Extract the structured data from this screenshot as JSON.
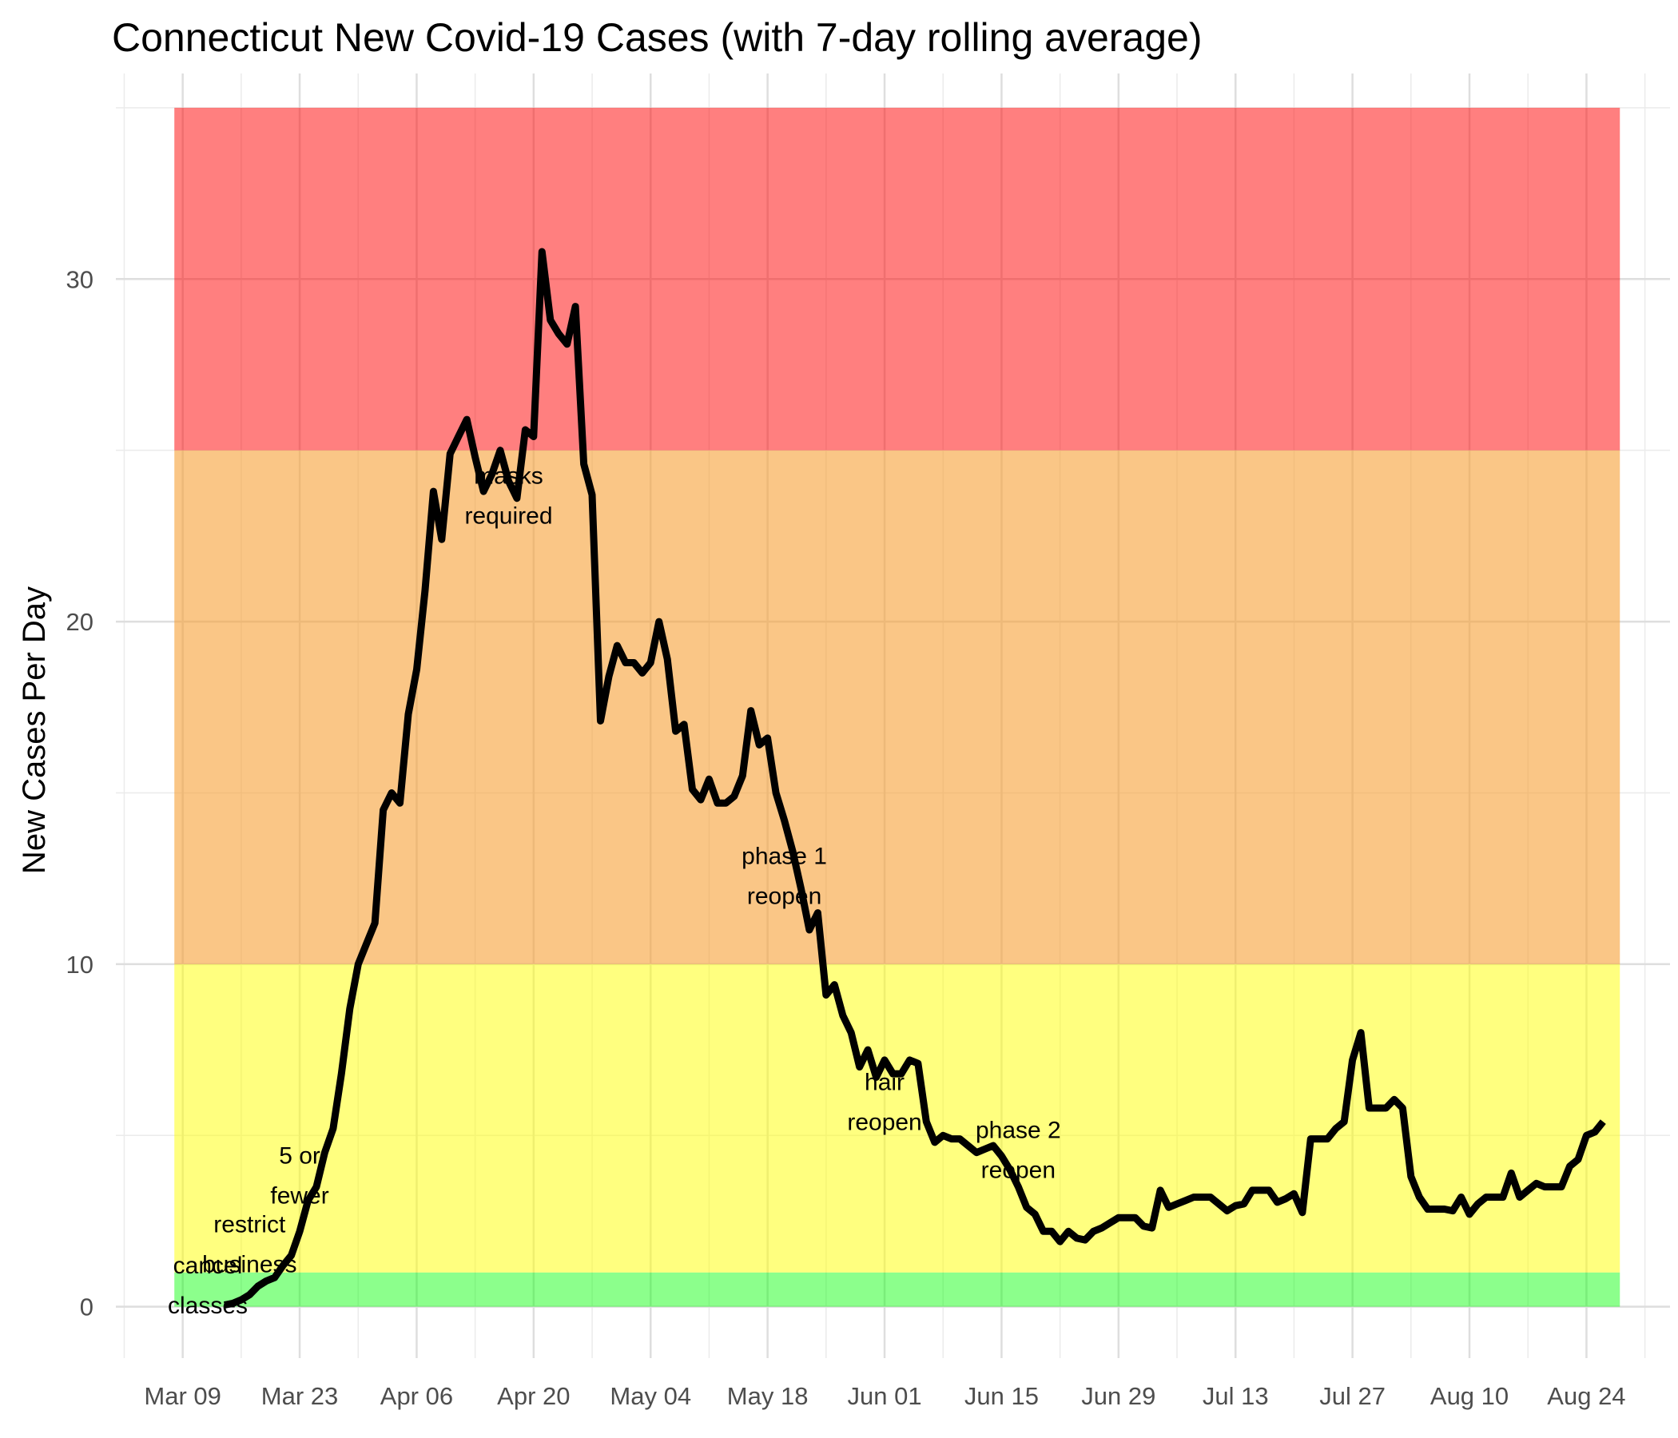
{
  "chart_data": {
    "type": "line",
    "title": "Connecticut New Covid-19 Cases (with 7-day rolling average)",
    "xlabel": "",
    "ylabel": "New Cases Per Day",
    "xlim": [
      "2020-03-01",
      "2020-09-03"
    ],
    "ylim": [
      -1.5,
      36
    ],
    "x_ticks": [
      "2020-03-09",
      "2020-03-23",
      "2020-04-06",
      "2020-04-20",
      "2020-05-04",
      "2020-05-18",
      "2020-06-01",
      "2020-06-15",
      "2020-06-29",
      "2020-07-13",
      "2020-07-27",
      "2020-08-10",
      "2020-08-24"
    ],
    "x_tick_labels": [
      "Mar 09",
      "Mar 23",
      "Apr 06",
      "Apr 20",
      "May 04",
      "May 18",
      "Jun 01",
      "Jun 15",
      "Jun 29",
      "Jul 13",
      "Jul 27",
      "Aug 10",
      "Aug 24"
    ],
    "y_ticks": [
      0,
      10,
      20,
      30
    ],
    "y_tick_labels": [
      "0",
      "10",
      "20",
      "30"
    ],
    "grid": true,
    "bands": [
      {
        "from": 0,
        "to": 1,
        "color": "#00ff00",
        "opacity": 0.45
      },
      {
        "from": 1,
        "to": 10,
        "color": "#ffff00",
        "opacity": 0.5
      },
      {
        "from": 10,
        "to": 25,
        "color": "#f7a035",
        "opacity": 0.6
      },
      {
        "from": 25,
        "to": 35,
        "color": "#ff0000",
        "opacity": 0.5
      }
    ],
    "band_x_range": [
      "2020-03-08",
      "2020-08-28"
    ],
    "series": [
      {
        "name": "",
        "color": "#000000",
        "x_start": "2020-03-14",
        "values": [
          0.05,
          0.1,
          0.2,
          0.35,
          0.6,
          0.75,
          0.85,
          1.2,
          1.5,
          2.2,
          3.1,
          3.5,
          4.5,
          5.2,
          6.8,
          8.7,
          10.0,
          10.6,
          11.2,
          14.5,
          15.0,
          14.7,
          17.3,
          18.6,
          20.9,
          23.8,
          22.4,
          24.9,
          25.4,
          25.9,
          24.8,
          23.8,
          24.3,
          25.0,
          24.1,
          23.6,
          25.6,
          25.4,
          30.8,
          28.8,
          28.4,
          28.1,
          29.2,
          24.6,
          23.7,
          17.1,
          18.4,
          19.3,
          18.8,
          18.8,
          18.5,
          18.8,
          20.0,
          18.9,
          16.8,
          17.0,
          15.1,
          14.8,
          15.4,
          14.7,
          14.7,
          14.9,
          15.5,
          17.4,
          16.4,
          16.6,
          15.0,
          14.2,
          13.3,
          12.2,
          11.0,
          11.5,
          9.1,
          9.4,
          8.5,
          8.0,
          7.0,
          7.5,
          6.7,
          7.2,
          6.8,
          6.8,
          7.2,
          7.1,
          5.4,
          4.8,
          5.0,
          4.9,
          4.9,
          4.7,
          4.5,
          4.6,
          4.7,
          4.4,
          4.0,
          3.5,
          2.9,
          2.7,
          2.2,
          2.2,
          1.9,
          2.2,
          2.0,
          1.95,
          2.2,
          2.3,
          2.45,
          2.6,
          2.6,
          2.6,
          2.35,
          2.3,
          3.4,
          2.9,
          3.0,
          3.1,
          3.2,
          3.2,
          3.2,
          3.0,
          2.8,
          2.95,
          3.0,
          3.4,
          3.4,
          3.4,
          3.05,
          3.15,
          3.3,
          2.75,
          4.9,
          4.9,
          4.9,
          5.2,
          5.4,
          7.2,
          8.0,
          5.8,
          5.8,
          5.8,
          6.05,
          5.8,
          3.8,
          3.2,
          2.85,
          2.85,
          2.85,
          2.8,
          3.2,
          2.7,
          3.0,
          3.2,
          3.2,
          3.2,
          3.9,
          3.2,
          3.4,
          3.6,
          3.5,
          3.5,
          3.5,
          4.1,
          4.3,
          5.0,
          5.1,
          5.4
        ]
      }
    ],
    "annotations": [
      {
        "label": "cancel classes",
        "lines": [
          "cancel",
          "classes"
        ],
        "x": "2020-03-12",
        "y": 0.65
      },
      {
        "label": "restrict business",
        "lines": [
          "restrict",
          "business"
        ],
        "x": "2020-03-17",
        "y": 1.85
      },
      {
        "label": "5 or fewer",
        "lines": [
          "5 or",
          "fewer"
        ],
        "x": "2020-03-23",
        "y": 3.85
      },
      {
        "label": "masks required",
        "lines": [
          "masks",
          "required"
        ],
        "x": "2020-04-17",
        "y": 23.7
      },
      {
        "label": "phase 1 reopen",
        "lines": [
          "phase 1",
          "reopen"
        ],
        "x": "2020-05-20",
        "y": 12.6
      },
      {
        "label": "hair reopen",
        "lines": [
          "hair",
          "reopen"
        ],
        "x": "2020-06-01",
        "y": 6.0
      },
      {
        "label": "phase 2 reopen",
        "lines": [
          "phase 2",
          "reopen"
        ],
        "x": "2020-06-17",
        "y": 4.6
      }
    ]
  }
}
